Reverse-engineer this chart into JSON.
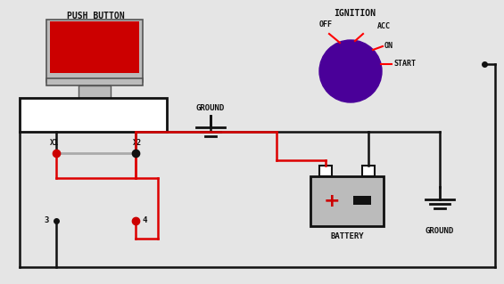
{
  "bg_color": "#e5e5e5",
  "push_button_label": "PUSH BUTTON",
  "ignition_label": "IGNITION",
  "ground_label1": "GROUND",
  "ground_label2": "GROUND",
  "battery_label": "BATTERY",
  "x1_label": "X1",
  "x2_label": "X2",
  "label_3": "3",
  "label_4": "4",
  "off_label": "OFF",
  "acc_label": "ACC",
  "on_label": "ON",
  "start_label": "START",
  "red_color": "#cc0000",
  "purple_color": "#4a0099",
  "gray_color": "#aaaaaa",
  "wire_red": "#dd0000",
  "wire_black": "#111111",
  "dark_gray": "#555555",
  "light_gray": "#bbbbbb"
}
